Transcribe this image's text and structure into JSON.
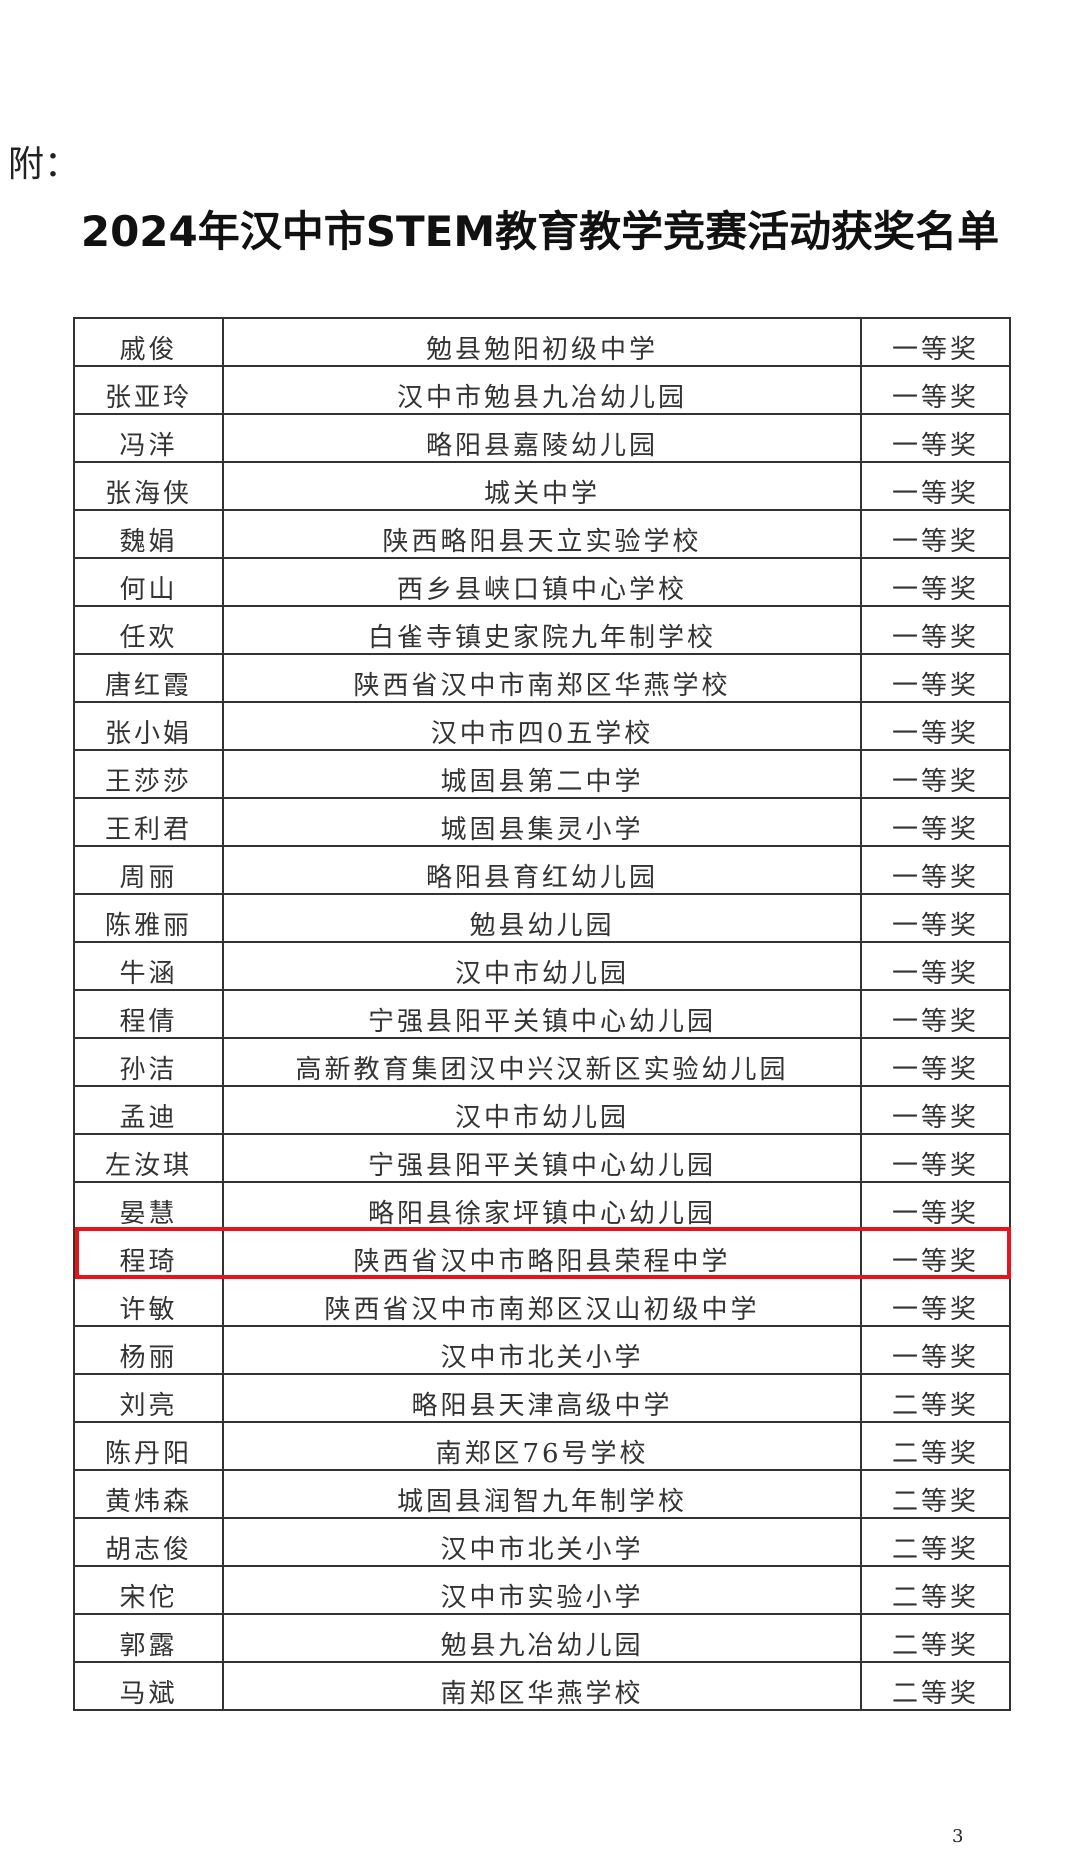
{
  "attachment_label": "附：",
  "title": "2024年汉中市STEM教育教学竞赛活动获奖名单",
  "highlight_color": "#e8141b",
  "highlighted_row_index": 19,
  "rows": [
    {
      "name": "戚俊",
      "school": "勉县勉阳初级中学",
      "award": "一等奖"
    },
    {
      "name": "张亚玲",
      "school": "汉中市勉县九冶幼儿园",
      "award": "一等奖"
    },
    {
      "name": "冯洋",
      "school": "略阳县嘉陵幼儿园",
      "award": "一等奖"
    },
    {
      "name": "张海侠",
      "school": "城关中学",
      "award": "一等奖"
    },
    {
      "name": "魏娟",
      "school": "陕西略阳县天立实验学校",
      "award": "一等奖"
    },
    {
      "name": "何山",
      "school": "西乡县峡口镇中心学校",
      "award": "一等奖"
    },
    {
      "name": "任欢",
      "school": "白雀寺镇史家院九年制学校",
      "award": "一等奖"
    },
    {
      "name": "唐红霞",
      "school": "陕西省汉中市南郑区华燕学校",
      "award": "一等奖"
    },
    {
      "name": "张小娟",
      "school": "汉中市四0五学校",
      "award": "一等奖"
    },
    {
      "name": "王莎莎",
      "school": "城固县第二中学",
      "award": "一等奖"
    },
    {
      "name": "王利君",
      "school": "城固县集灵小学",
      "award": "一等奖"
    },
    {
      "name": "周丽",
      "school": "略阳县育红幼儿园",
      "award": "一等奖"
    },
    {
      "name": "陈雅丽",
      "school": "勉县幼儿园",
      "award": "一等奖"
    },
    {
      "name": "牛涵",
      "school": "汉中市幼儿园",
      "award": "一等奖"
    },
    {
      "name": "程倩",
      "school": "宁强县阳平关镇中心幼儿园",
      "award": "一等奖"
    },
    {
      "name": "孙洁",
      "school": "高新教育集团汉中兴汉新区实验幼儿园",
      "award": "一等奖"
    },
    {
      "name": "孟迪",
      "school": "汉中市幼儿园",
      "award": "一等奖"
    },
    {
      "name": "左汝琪",
      "school": "宁强县阳平关镇中心幼儿园",
      "award": "一等奖"
    },
    {
      "name": "晏慧",
      "school": "略阳县徐家坪镇中心幼儿园",
      "award": "一等奖"
    },
    {
      "name": "程琦",
      "school": "陕西省汉中市略阳县荣程中学",
      "award": "一等奖"
    },
    {
      "name": "许敏",
      "school": "陕西省汉中市南郑区汉山初级中学",
      "award": "一等奖"
    },
    {
      "name": "杨丽",
      "school": "汉中市北关小学",
      "award": "一等奖"
    },
    {
      "name": "刘亮",
      "school": "略阳县天津高级中学",
      "award": "二等奖"
    },
    {
      "name": "陈丹阳",
      "school": "南郑区76号学校",
      "award": "二等奖"
    },
    {
      "name": "黄炜森",
      "school": "城固县润智九年制学校",
      "award": "二等奖"
    },
    {
      "name": "胡志俊",
      "school": "汉中市北关小学",
      "award": "二等奖"
    },
    {
      "name": "宋佗",
      "school": "汉中市实验小学",
      "award": "二等奖"
    },
    {
      "name": "郭露",
      "school": "勉县九冶幼儿园",
      "award": "二等奖"
    },
    {
      "name": "马斌",
      "school": "南郑区华燕学校",
      "award": "二等奖"
    }
  ],
  "page_number": "3"
}
